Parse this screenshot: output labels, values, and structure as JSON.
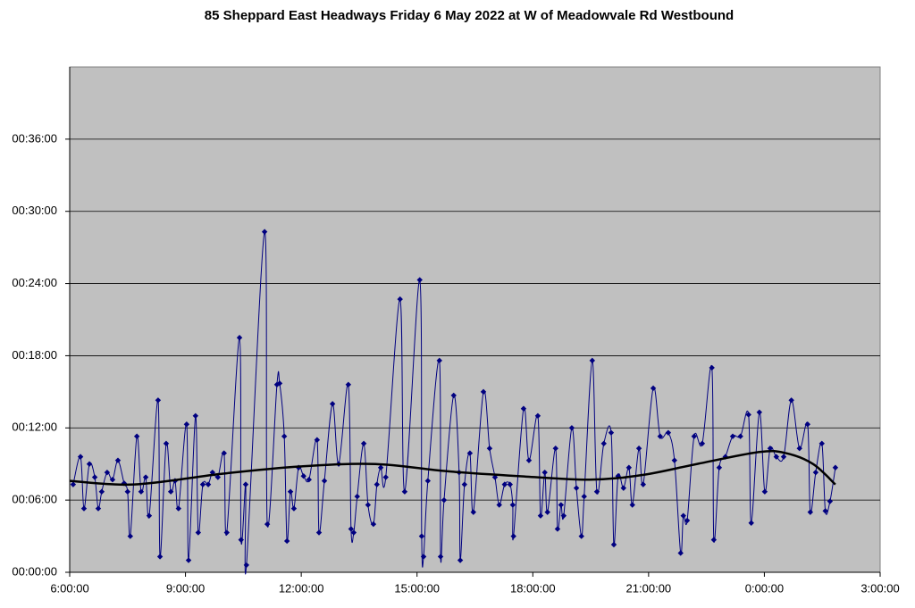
{
  "chart_data": {
    "type": "line",
    "title": "85 Sheppard East Headways Friday 6 May 2022 at W of Meadowvale Rd Westbound",
    "xlim": [
      6,
      27
    ],
    "xticks": [
      {
        "value": 6,
        "label": "6:00:00"
      },
      {
        "value": 9,
        "label": "9:00:00"
      },
      {
        "value": 12,
        "label": "12:00:00"
      },
      {
        "value": 15,
        "label": "15:00:00"
      },
      {
        "value": 18,
        "label": "18:00:00"
      },
      {
        "value": 21,
        "label": "21:00:00"
      },
      {
        "value": 24,
        "label": "0:00:00"
      },
      {
        "value": 27,
        "label": "3:00:00"
      }
    ],
    "ylim": [
      0,
      42
    ],
    "yticks": [
      {
        "value": 0,
        "label": "00:00:00"
      },
      {
        "value": 6,
        "label": "00:06:00"
      },
      {
        "value": 12,
        "label": "00:12:00"
      },
      {
        "value": 18,
        "label": "00:18:00"
      },
      {
        "value": 24,
        "label": "00:24:00"
      },
      {
        "value": 30,
        "label": "00:30:00"
      },
      {
        "value": 36,
        "label": "00:36:00"
      }
    ],
    "grid": true,
    "series": [
      {
        "color": "#000080",
        "marker": "diamond",
        "x": [
          6.09,
          6.28,
          6.37,
          6.51,
          6.65,
          6.74,
          6.83,
          6.97,
          7.11,
          7.25,
          7.41,
          7.5,
          7.57,
          7.74,
          7.85,
          7.97,
          8.06,
          8.29,
          8.34,
          8.5,
          8.62,
          8.73,
          8.82,
          9.03,
          9.08,
          9.26,
          9.33,
          9.45,
          9.59,
          9.7,
          9.84,
          10.0,
          10.07,
          10.4,
          10.44,
          10.56,
          10.58,
          11.05,
          11.12,
          11.37,
          11.44,
          11.56,
          11.63,
          11.72,
          11.81,
          11.93,
          12.06,
          12.2,
          12.41,
          12.46,
          12.6,
          12.81,
          12.97,
          13.22,
          13.29,
          13.36,
          13.45,
          13.62,
          13.73,
          13.87,
          13.96,
          14.06,
          14.19,
          14.56,
          14.68,
          15.07,
          15.12,
          15.17,
          15.28,
          15.58,
          15.61,
          15.7,
          15.95,
          16.09,
          16.12,
          16.23,
          16.37,
          16.46,
          16.72,
          16.88,
          17.02,
          17.13,
          17.27,
          17.41,
          17.48,
          17.5,
          17.76,
          17.9,
          18.13,
          18.2,
          18.31,
          18.38,
          18.59,
          18.64,
          18.73,
          18.8,
          19.01,
          19.13,
          19.26,
          19.33,
          19.54,
          19.66,
          19.84,
          20.03,
          20.1,
          20.21,
          20.35,
          20.49,
          20.58,
          20.75,
          20.86,
          21.12,
          21.3,
          21.51,
          21.67,
          21.83,
          21.9,
          22.0,
          22.18,
          22.39,
          22.64,
          22.69,
          22.83,
          22.99,
          23.18,
          23.38,
          23.59,
          23.66,
          23.87,
          24.01,
          24.15,
          24.31,
          24.5,
          24.7,
          24.91,
          25.12,
          25.19,
          25.33,
          25.49,
          25.58,
          25.7,
          25.84
        ],
        "values": [
          7.3,
          9.6,
          5.3,
          9.0,
          7.9,
          5.3,
          6.7,
          8.3,
          7.7,
          9.3,
          7.4,
          6.7,
          3.0,
          11.3,
          6.7,
          7.9,
          4.7,
          14.3,
          1.3,
          10.7,
          6.7,
          7.6,
          5.3,
          12.3,
          1.0,
          13.0,
          3.3,
          7.3,
          7.3,
          8.3,
          7.9,
          9.9,
          3.3,
          19.5,
          2.7,
          7.3,
          0.6,
          28.3,
          4.0,
          15.6,
          15.7,
          11.3,
          2.6,
          6.7,
          5.3,
          8.7,
          8.0,
          7.7,
          11.0,
          3.3,
          7.6,
          14.0,
          9.0,
          15.6,
          3.6,
          3.3,
          6.3,
          10.7,
          5.6,
          4.0,
          7.3,
          8.7,
          7.9,
          22.7,
          6.7,
          24.3,
          3.0,
          1.3,
          7.6,
          17.6,
          1.3,
          6.0,
          14.7,
          8.3,
          1.0,
          7.3,
          9.9,
          5.0,
          15.0,
          10.3,
          7.9,
          5.6,
          7.3,
          7.3,
          5.6,
          3.0,
          13.6,
          9.3,
          13.0,
          4.7,
          8.3,
          5.0,
          10.3,
          3.6,
          5.6,
          4.7,
          12.0,
          7.0,
          3.0,
          6.3,
          17.6,
          6.7,
          10.7,
          11.6,
          2.3,
          8.0,
          7.0,
          8.7,
          5.6,
          10.3,
          7.3,
          15.3,
          11.3,
          11.6,
          9.3,
          1.6,
          4.7,
          4.3,
          11.3,
          10.7,
          17.0,
          2.7,
          8.7,
          9.6,
          11.3,
          11.3,
          13.1,
          4.1,
          13.3,
          6.7,
          10.3,
          9.6,
          9.6,
          14.3,
          10.3,
          12.3,
          5.0,
          8.3,
          10.7,
          5.1,
          5.9,
          8.7
        ]
      },
      {
        "color": "#000000",
        "x": [
          6.0,
          7.67,
          9.98,
          12.0,
          13.92,
          15.77,
          17.62,
          19.47,
          20.86,
          22.25,
          23.87,
          24.56,
          25.26,
          25.84
        ],
        "values": [
          7.6,
          7.3,
          8.2,
          8.8,
          9.0,
          8.4,
          8.0,
          7.7,
          8.1,
          9.0,
          10.0,
          9.9,
          9.0,
          7.3
        ]
      }
    ]
  }
}
